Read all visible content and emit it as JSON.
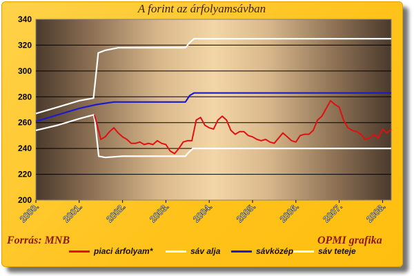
{
  "chart_data": {
    "type": "line",
    "title": "A forint az árfolyamsávban",
    "source": "Forrás: MNB",
    "credit": "OPMI grafika",
    "ylim": [
      200,
      340
    ],
    "yticks": [
      "200",
      "220",
      "240",
      "260",
      "280",
      "300",
      "320",
      "340"
    ],
    "xlim": [
      2000.0,
      2008.2
    ],
    "xticks": [
      "2000.",
      "2001.",
      "2002.",
      "2003.",
      "2004.",
      "2005.",
      "2006.",
      "2007.",
      "2008."
    ],
    "grid": true,
    "legend_position": "bottom",
    "colors": {
      "piaci": "#e01010",
      "alja": "#ffffff",
      "kozep": "#1a1ad0",
      "teteje": "#ffffff"
    },
    "series": [
      {
        "name": "piaci árfolyam*",
        "key": "piaci",
        "points": [
          [
            2001.35,
            266
          ],
          [
            2001.4,
            260
          ],
          [
            2001.5,
            247
          ],
          [
            2001.6,
            249
          ],
          [
            2001.7,
            253
          ],
          [
            2001.8,
            256
          ],
          [
            2001.9,
            252
          ],
          [
            2002.0,
            249
          ],
          [
            2002.1,
            247
          ],
          [
            2002.2,
            244
          ],
          [
            2002.3,
            244
          ],
          [
            2002.4,
            245
          ],
          [
            2002.5,
            243
          ],
          [
            2002.6,
            244
          ],
          [
            2002.7,
            243
          ],
          [
            2002.8,
            246
          ],
          [
            2002.9,
            244
          ],
          [
            2003.0,
            243
          ],
          [
            2003.1,
            238
          ],
          [
            2003.2,
            236
          ],
          [
            2003.3,
            240
          ],
          [
            2003.4,
            245
          ],
          [
            2003.5,
            246
          ],
          [
            2003.6,
            246
          ],
          [
            2003.7,
            262
          ],
          [
            2003.8,
            264
          ],
          [
            2003.9,
            258
          ],
          [
            2004.0,
            256
          ],
          [
            2004.1,
            255
          ],
          [
            2004.2,
            262
          ],
          [
            2004.3,
            265
          ],
          [
            2004.4,
            262
          ],
          [
            2004.5,
            254
          ],
          [
            2004.6,
            251
          ],
          [
            2004.7,
            253
          ],
          [
            2004.8,
            253
          ],
          [
            2004.9,
            250
          ],
          [
            2005.0,
            249
          ],
          [
            2005.1,
            247
          ],
          [
            2005.2,
            246
          ],
          [
            2005.3,
            247
          ],
          [
            2005.4,
            245
          ],
          [
            2005.5,
            244
          ],
          [
            2005.6,
            248
          ],
          [
            2005.7,
            252
          ],
          [
            2005.8,
            249
          ],
          [
            2005.9,
            246
          ],
          [
            2006.0,
            245
          ],
          [
            2006.1,
            250
          ],
          [
            2006.2,
            251
          ],
          [
            2006.3,
            251
          ],
          [
            2006.4,
            254
          ],
          [
            2006.5,
            262
          ],
          [
            2006.6,
            265
          ],
          [
            2006.7,
            271
          ],
          [
            2006.8,
            277
          ],
          [
            2006.9,
            274
          ],
          [
            2007.0,
            272
          ],
          [
            2007.1,
            262
          ],
          [
            2007.2,
            256
          ],
          [
            2007.3,
            254
          ],
          [
            2007.4,
            253
          ],
          [
            2007.5,
            251
          ],
          [
            2007.6,
            247
          ],
          [
            2007.7,
            248
          ],
          [
            2007.8,
            251
          ],
          [
            2007.9,
            248
          ],
          [
            2008.0,
            255
          ],
          [
            2008.1,
            252
          ],
          [
            2008.2,
            255
          ]
        ]
      },
      {
        "name": "sáv alja",
        "key": "alja",
        "points": [
          [
            2000.0,
            254
          ],
          [
            2000.5,
            258
          ],
          [
            2001.0,
            263
          ],
          [
            2001.33,
            266
          ],
          [
            2001.36,
            262
          ],
          [
            2001.45,
            234
          ],
          [
            2001.6,
            233
          ],
          [
            2002.0,
            234
          ],
          [
            2003.45,
            234
          ],
          [
            2003.5,
            236
          ],
          [
            2003.62,
            240
          ],
          [
            2008.2,
            240
          ]
        ]
      },
      {
        "name": "sávközép",
        "key": "kozep",
        "points": [
          [
            2000.0,
            261
          ],
          [
            2000.5,
            266
          ],
          [
            2001.0,
            271
          ],
          [
            2001.4,
            274
          ],
          [
            2001.8,
            276
          ],
          [
            2003.45,
            276
          ],
          [
            2003.55,
            281
          ],
          [
            2003.65,
            283
          ],
          [
            2008.2,
            283
          ]
        ]
      },
      {
        "name": "sáv teteje",
        "key": "teteje",
        "points": [
          [
            2000.0,
            267
          ],
          [
            2000.5,
            272
          ],
          [
            2001.0,
            277
          ],
          [
            2001.33,
            279
          ],
          [
            2001.38,
            295
          ],
          [
            2001.44,
            314
          ],
          [
            2001.6,
            316
          ],
          [
            2001.9,
            318
          ],
          [
            2003.45,
            318
          ],
          [
            2003.55,
            322
          ],
          [
            2003.65,
            325
          ],
          [
            2008.2,
            325
          ]
        ]
      }
    ]
  }
}
